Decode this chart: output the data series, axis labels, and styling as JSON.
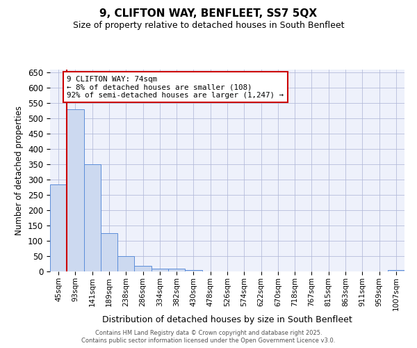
{
  "title1": "9, CLIFTON WAY, BENFLEET, SS7 5QX",
  "title2": "Size of property relative to detached houses in South Benfleet",
  "xlabel": "Distribution of detached houses by size in South Benfleet",
  "ylabel": "Number of detached properties",
  "bar_color": "#ccd9f0",
  "bar_edge_color": "#5b8dd9",
  "categories": [
    "45sqm",
    "93sqm",
    "141sqm",
    "189sqm",
    "238sqm",
    "286sqm",
    "334sqm",
    "382sqm",
    "430sqm",
    "478sqm",
    "526sqm",
    "574sqm",
    "622sqm",
    "670sqm",
    "718sqm",
    "767sqm",
    "815sqm",
    "863sqm",
    "911sqm",
    "959sqm",
    "1007sqm"
  ],
  "values": [
    285,
    530,
    350,
    125,
    50,
    18,
    10,
    8,
    5,
    0,
    0,
    0,
    0,
    0,
    0,
    0,
    0,
    0,
    0,
    0,
    5
  ],
  "ylim": [
    0,
    660
  ],
  "yticks": [
    0,
    50,
    100,
    150,
    200,
    250,
    300,
    350,
    400,
    450,
    500,
    550,
    600,
    650
  ],
  "property_line_x": 0.5,
  "property_line_color": "#cc0000",
  "annotation_text": "9 CLIFTON WAY: 74sqm\n← 8% of detached houses are smaller (108)\n92% of semi-detached houses are larger (1,247) →",
  "annotation_box_color": "#cc0000",
  "footer_text1": "Contains HM Land Registry data © Crown copyright and database right 2025.",
  "footer_text2": "Contains public sector information licensed under the Open Government Licence v3.0.",
  "background_color": "#eef1fb",
  "grid_color": "#b0b8d8",
  "fig_width": 6.0,
  "fig_height": 5.0,
  "dpi": 100
}
